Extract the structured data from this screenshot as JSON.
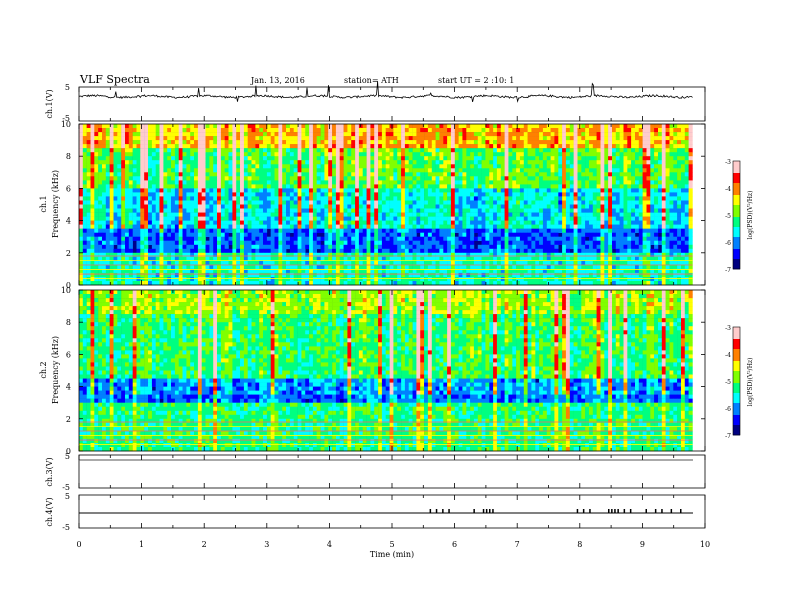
{
  "header": {
    "title": "VLF Spectra",
    "date": "Jan. 13, 2016",
    "station": "station= ATH",
    "start": "start  UT =   2 :10: 1"
  },
  "chart_data": [
    {
      "type": "line",
      "panel": "ch1-waveform",
      "ylabel": "ch.1(V)",
      "ylim": [
        -5,
        5
      ],
      "yticks": [
        "5",
        "-5"
      ],
      "xlim": [
        0,
        10
      ],
      "baseline_v": 2.2
    },
    {
      "type": "heatmap",
      "panel": "ch1-spectrogram",
      "ylabel": "Frequency (kHz)",
      "channel_label": "ch.1",
      "ylim": [
        0,
        10
      ],
      "yticks": [
        "0",
        "2",
        "4",
        "6",
        "8",
        "10"
      ],
      "xlim": [
        0,
        10
      ],
      "colorbar": {
        "label": "log(PSD)(V²/Hz)",
        "range": [
          -7,
          -3
        ],
        "ticks": [
          "-3",
          "-4",
          "-5",
          "-6",
          "-7"
        ]
      }
    },
    {
      "type": "heatmap",
      "panel": "ch2-spectrogram",
      "ylabel": "Frequency (kHz)",
      "channel_label": "ch.2",
      "ylim": [
        0,
        10
      ],
      "yticks": [
        "0",
        "2",
        "4",
        "6",
        "8",
        "10"
      ],
      "xlim": [
        0,
        10
      ],
      "colorbar": {
        "label": "log(PSD)(V²/Hz)",
        "range": [
          -7,
          -3
        ],
        "ticks": [
          "-3",
          "-4",
          "-5",
          "-6",
          "-7"
        ]
      }
    },
    {
      "type": "line",
      "panel": "ch3-waveform",
      "ylabel": "ch.3(V)",
      "ylim": [
        -5,
        5
      ],
      "yticks": [
        "5",
        "-5"
      ],
      "xlim": [
        0,
        10
      ]
    },
    {
      "type": "line",
      "panel": "ch4-waveform",
      "ylabel": "ch.4(V)",
      "ylim": [
        -5,
        5
      ],
      "yticks": [
        "5",
        "-5"
      ],
      "xlim": [
        0,
        10
      ],
      "pulse_times_min": [
        5.6,
        5.7,
        5.8,
        5.9,
        6.3,
        6.45,
        6.5,
        6.55,
        6.6,
        7.95,
        8.05,
        8.15,
        8.45,
        8.5,
        8.55,
        8.6,
        8.7,
        8.8,
        9.05,
        9.2,
        9.3,
        9.45,
        9.6
      ]
    }
  ],
  "xaxis": {
    "label": "Time (min)",
    "ticks": [
      "0",
      "1",
      "2",
      "3",
      "4",
      "5",
      "6",
      "7",
      "8",
      "9",
      "10"
    ]
  },
  "colors": {
    "colormap": [
      "#000080",
      "#0000ff",
      "#0080ff",
      "#00ffff",
      "#00ff80",
      "#80ff00",
      "#ffff00",
      "#ff8000",
      "#ff0000",
      "#ffcccc"
    ]
  }
}
